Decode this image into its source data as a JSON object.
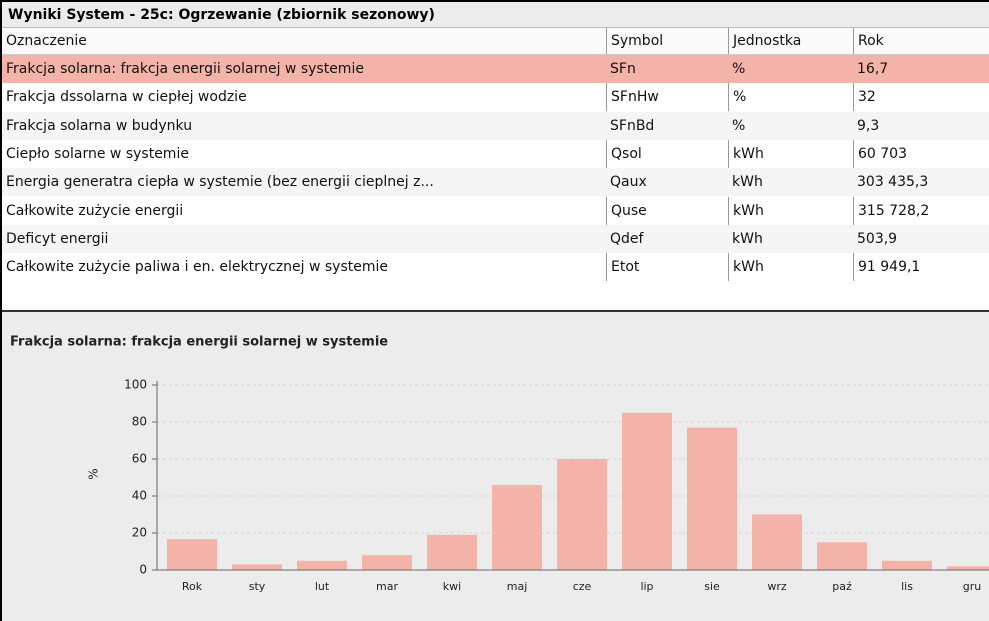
{
  "table": {
    "title": "Wyniki System - 25c: Ogrzewanie (zbiornik sezonowy)",
    "columns": [
      "Oznaczenie",
      "Symbol",
      "Jednostka",
      "Rok"
    ],
    "rows": [
      [
        "Frakcja solarna: frakcja energii solarnej w systemie",
        "SFn",
        "%",
        "16,7"
      ],
      [
        "Frakcja dssolarna w ciepłej wodzie",
        "SFnHw",
        "%",
        "32"
      ],
      [
        "Frakcja solarna w budynku",
        "SFnBd",
        "%",
        "9,3"
      ],
      [
        "Ciepło solarne w systemie",
        "Qsol",
        "kWh",
        "60 703"
      ],
      [
        "Energia generatra ciepła w systemie (bez energii cieplnej z...",
        "Qaux",
        "kWh",
        "303 435,3"
      ],
      [
        "Całkowite zużycie energii",
        "Quse",
        "kWh",
        "315 728,2"
      ],
      [
        "Deficyt energii",
        "Qdef",
        "kWh",
        "503,9"
      ],
      [
        "Całkowite zużycie paliwa i en. elektrycznej w systemie",
        "Etot",
        "kWh",
        "91 949,1"
      ]
    ]
  },
  "chart_data": {
    "type": "bar",
    "title": "Frakcja solarna: frakcja energii solarnej w systemie",
    "y_label": "%",
    "categories": [
      "Rok",
      "sty",
      "lut",
      "mar",
      "kwi",
      "maj",
      "cze",
      "lip",
      "sie",
      "wrz",
      "paź",
      "lis",
      "gru"
    ],
    "values": [
      16.7,
      3,
      5,
      8,
      19,
      46,
      60,
      85,
      77,
      30,
      15,
      5,
      2
    ],
    "color": "#f4b3a8",
    "ylim": [
      0,
      100
    ],
    "yticks": [
      0,
      20,
      40,
      60,
      80,
      100
    ],
    "grid": true
  }
}
